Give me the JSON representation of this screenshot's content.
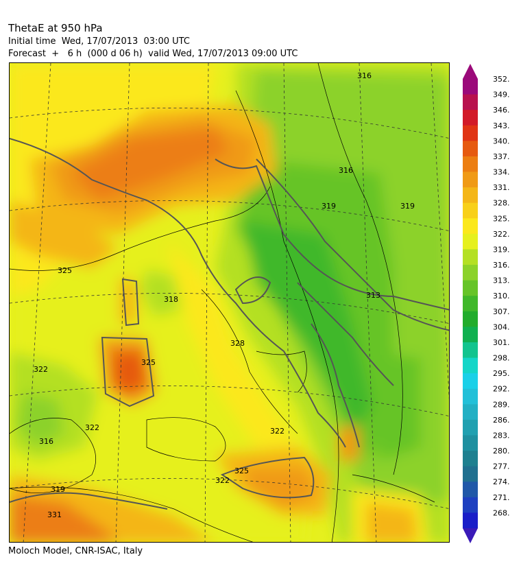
{
  "header": {
    "title": "ThetaE at 950 hPa",
    "initial_time": "Initial time  Wed, 17/07/2013  03:00 UTC",
    "forecast": "Forecast  +   6 h  (000 d 06 h)  valid Wed, 17/07/2013 09:00 UTC"
  },
  "footer": "Moloch Model, CNR-ISAC, Italy",
  "colorbar": {
    "levels": [
      {
        "label": "352.",
        "color": "#9b0a7a"
      },
      {
        "label": "349.",
        "color": "#b8124e"
      },
      {
        "label": "346.",
        "color": "#d21a28"
      },
      {
        "label": "343.",
        "color": "#e03414"
      },
      {
        "label": "340.",
        "color": "#e65a10"
      },
      {
        "label": "337.",
        "color": "#ec7e12"
      },
      {
        "label": "334.",
        "color": "#f09a16"
      },
      {
        "label": "331.",
        "color": "#f4b618"
      },
      {
        "label": "328.",
        "color": "#f8d01a"
      },
      {
        "label": "325.",
        "color": "#fbe81c"
      },
      {
        "label": "322.",
        "color": "#e6f01e"
      },
      {
        "label": "319.",
        "color": "#b4e024"
      },
      {
        "label": "316.",
        "color": "#8cd22a"
      },
      {
        "label": "313.",
        "color": "#66c428"
      },
      {
        "label": "310.",
        "color": "#40b82a"
      },
      {
        "label": "307.",
        "color": "#22ac2c"
      },
      {
        "label": "304.",
        "color": "#10b050"
      },
      {
        "label": "301.",
        "color": "#12c48e"
      },
      {
        "label": "298.",
        "color": "#14d6c8"
      },
      {
        "label": "295.",
        "color": "#1ad0e8"
      },
      {
        "label": "292.",
        "color": "#22c0d8"
      },
      {
        "label": "289.",
        "color": "#22b0c4"
      },
      {
        "label": "286.",
        "color": "#20a0b0"
      },
      {
        "label": "283.",
        "color": "#1e90a0"
      },
      {
        "label": "280.",
        "color": "#1e8090"
      },
      {
        "label": "277.",
        "color": "#207090"
      },
      {
        "label": "274.",
        "color": "#2058a8"
      },
      {
        "label": "271.",
        "color": "#1e40c0"
      },
      {
        "label": "268.",
        "color": "#1a1ec8"
      }
    ],
    "arrow_top_color": "#9b0a7a",
    "arrow_bottom_color": "#3a1ab8"
  },
  "map": {
    "contour_labels": [
      "316",
      "316",
      "319",
      "319",
      "322",
      "322",
      "322",
      "325",
      "325",
      "325",
      "328",
      "331",
      "313",
      "316",
      "318",
      "319",
      "322"
    ]
  }
}
